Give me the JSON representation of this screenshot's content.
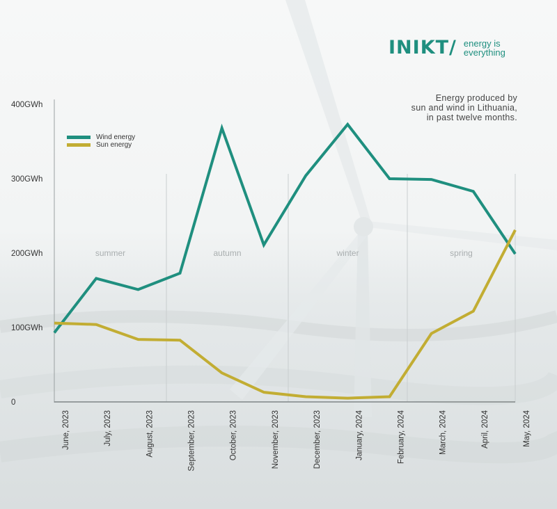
{
  "brand": {
    "logo_text": "INIKT/",
    "tagline_line1": "energy is",
    "tagline_line2": "everything",
    "color": "#1f8f7f"
  },
  "caption": {
    "line1": "Energy produced by",
    "line2": "sun and wind in Lithuania,",
    "line3": "in past twelve months."
  },
  "chart_data": {
    "type": "line",
    "categories": [
      "June, 2023",
      "July, 2023",
      "August, 2023",
      "September, 2023",
      "October, 2023",
      "November, 2023",
      "December, 2023",
      "January, 2024",
      "February, 2024",
      "March, 2024",
      "April, 2024",
      "May, 2024"
    ],
    "series": [
      {
        "name": "Wind energy",
        "color": "#1f8f7f",
        "values": [
          93,
          166,
          151,
          173,
          368,
          211,
          304,
          373,
          300,
          299,
          283,
          199
        ]
      },
      {
        "name": "Sun energy",
        "color": "#c2ad33",
        "values": [
          106,
          104,
          84,
          83,
          39,
          13,
          7,
          5,
          7,
          92,
          122,
          231
        ]
      }
    ],
    "ylim": [
      0,
      400
    ],
    "y_ticks": [
      {
        "value": 0,
        "label": "0"
      },
      {
        "value": 100,
        "label": "100GWh"
      },
      {
        "value": 200,
        "label": "200GWh"
      },
      {
        "value": 300,
        "label": "300GWh"
      },
      {
        "value": 400,
        "label": "400GWh"
      }
    ],
    "seasons": [
      "summer",
      "autumn",
      "winter",
      "spring"
    ],
    "legend_position": "top-left",
    "grid": false
  }
}
